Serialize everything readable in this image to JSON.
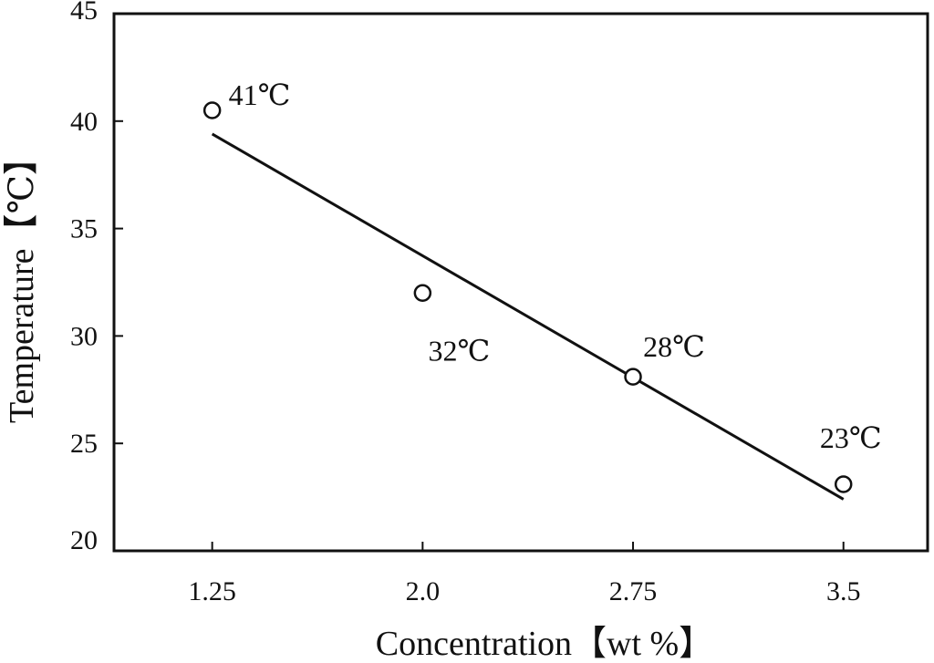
{
  "chart_data": {
    "type": "scatter",
    "xlabel": "Concentration【wt %】",
    "ylabel": "Temperature【℃】",
    "x_ticks": [
      "1.25",
      "2.0",
      "2.75",
      "3.5"
    ],
    "y_ticks": [
      "20",
      "25",
      "30",
      "35",
      "40",
      "45"
    ],
    "xlim": [
      0.9,
      3.8
    ],
    "ylim": [
      20,
      45
    ],
    "grid": false,
    "series": [
      {
        "points": [
          {
            "x": 1.25,
            "y": 40.5,
            "label": "41℃"
          },
          {
            "x": 2.0,
            "y": 32.0,
            "label": "32℃"
          },
          {
            "x": 2.75,
            "y": 28.1,
            "label": "28℃"
          },
          {
            "x": 3.5,
            "y": 23.1,
            "label": "23℃"
          }
        ]
      }
    ],
    "fit_line": {
      "x": [
        1.25,
        3.5
      ],
      "y": [
        39.4,
        22.4
      ]
    },
    "colors": {
      "axis": "#111111",
      "marker_stroke": "#111111",
      "marker_fill": "#ffffff",
      "line": "#111111"
    }
  }
}
